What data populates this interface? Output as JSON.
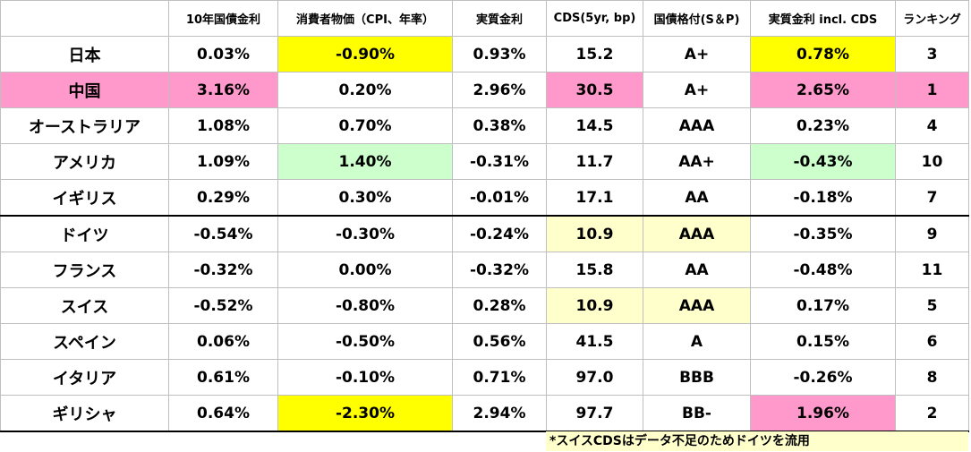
{
  "table": {
    "columns": [
      "10年国債金利",
      "消費者物価（CPI、年率）",
      "実質金利",
      "CDS(5yr, bp)",
      "国債格付(S＆P)",
      "実質金利 incl. CDS",
      "ランキング"
    ],
    "rows": [
      [
        "日本",
        "0.03%",
        "-0.90%",
        "0.93%",
        "15.2",
        "A+",
        "0.78%",
        "3"
      ],
      [
        "中国",
        "3.16%",
        "0.20%",
        "2.96%",
        "30.5",
        "A+",
        "2.65%",
        "1"
      ],
      [
        "オーストラリア",
        "1.08%",
        "0.70%",
        "0.38%",
        "14.5",
        "AAA",
        "0.23%",
        "4"
      ],
      [
        "アメリカ",
        "1.09%",
        "1.40%",
        "-0.31%",
        "11.7",
        "AA+",
        "-0.43%",
        "10"
      ],
      [
        "イギリス",
        "0.29%",
        "0.30%",
        "-0.01%",
        "17.1",
        "AA",
        "-0.18%",
        "7"
      ],
      [
        "ドイツ",
        "-0.54%",
        "-0.30%",
        "-0.24%",
        "10.9",
        "AAA",
        "-0.35%",
        "9"
      ],
      [
        "フランス",
        "-0.32%",
        "0.00%",
        "-0.32%",
        "15.8",
        "AA",
        "-0.48%",
        "11"
      ],
      [
        "スイス",
        "-0.52%",
        "-0.80%",
        "0.28%",
        "10.9",
        "AAA",
        "0.17%",
        "5"
      ],
      [
        "スペイン",
        "0.06%",
        "-0.50%",
        "0.56%",
        "41.5",
        "A",
        "0.15%",
        "6"
      ],
      [
        "イタリア",
        "0.61%",
        "-0.10%",
        "0.71%",
        "97.0",
        "BBB",
        "-0.26%",
        "8"
      ],
      [
        "ギリシャ",
        "0.64%",
        "-2.30%",
        "2.94%",
        "97.7",
        "BB-",
        "1.96%",
        "2"
      ]
    ]
  },
  "note": "*スイスCDSはデータ不足のためドイツを流用"
}
